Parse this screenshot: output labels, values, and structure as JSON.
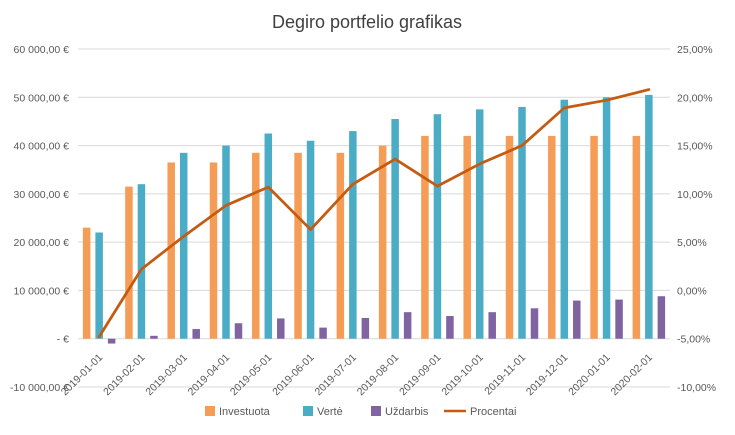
{
  "chart_data": {
    "type": "bar",
    "title": "Degiro portfelio grafikas",
    "categories": [
      "2019-01-01",
      "2019-02-01",
      "2019-03-01",
      "2019-04-01",
      "2019-05-01",
      "2019-06-01",
      "2019-07-01",
      "2019-08-01",
      "2019-09-01",
      "2019-10-01",
      "2019-11-01",
      "2019-12-01",
      "2020-01-01",
      "2020-02-01"
    ],
    "series": [
      {
        "name": "Investuota",
        "kind": "bar",
        "axis": "left",
        "color": "#f59d56",
        "values": [
          23000,
          31500,
          36500,
          36500,
          38500,
          38500,
          38500,
          40000,
          42000,
          42000,
          42000,
          42000,
          42000,
          42000
        ]
      },
      {
        "name": "Vertė",
        "kind": "bar",
        "axis": "left",
        "color": "#4bacc6",
        "values": [
          22000,
          32000,
          38500,
          40000,
          42500,
          41000,
          43000,
          45500,
          46500,
          47500,
          48000,
          49500,
          50000,
          50500
        ]
      },
      {
        "name": "Uždarbis",
        "kind": "bar",
        "axis": "left",
        "color": "#8064a2",
        "values": [
          -1000,
          600,
          2000,
          3200,
          4200,
          2300,
          4300,
          5500,
          4700,
          5500,
          6300,
          7900,
          8100,
          8800
        ]
      },
      {
        "name": "Procentai",
        "kind": "line",
        "axis": "right",
        "color": "#c55a11",
        "values": [
          -4.8,
          2.2,
          5.6,
          8.8,
          10.7,
          6.3,
          11.0,
          13.6,
          10.8,
          13.1,
          15.0,
          18.9,
          19.7,
          20.8
        ]
      }
    ],
    "left_axis": {
      "min": -10000,
      "max": 60000,
      "step": 10000,
      "tick_labels": [
        "-10 000,00 €",
        "-   €",
        "10 000,00 €",
        "20 000,00 €",
        "30 000,00 €",
        "40 000,00 €",
        "50 000,00 €",
        "60 000,00 €"
      ]
    },
    "right_axis": {
      "min": -10,
      "max": 25,
      "step": 5,
      "tick_labels": [
        "-10,00%",
        "-5,00%",
        "0,00%",
        "5,00%",
        "10,00%",
        "15,00%",
        "20,00%",
        "25,00%"
      ]
    },
    "grid": true,
    "legend_position": "bottom"
  }
}
